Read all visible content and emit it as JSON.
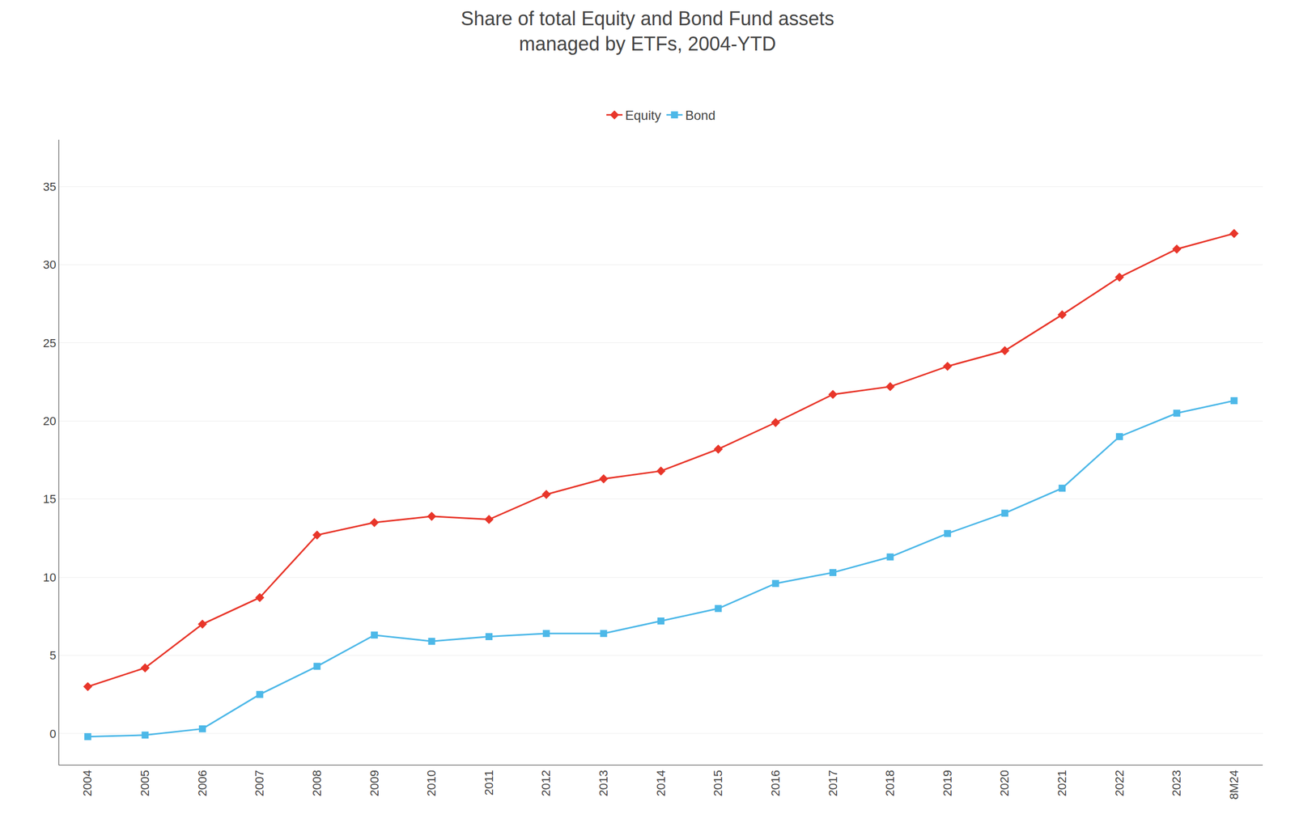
{
  "chart_data": {
    "type": "line",
    "title": "Share of total Equity and Bond Fund assets",
    "subtitle": "managed by ETFs, 2004-YTD",
    "categories": [
      "2004",
      "2005",
      "2006",
      "2007",
      "2008",
      "2009",
      "2010",
      "2011",
      "2012",
      "2013",
      "2014",
      "2015",
      "2016",
      "2017",
      "2018",
      "2019",
      "2020",
      "2021",
      "2022",
      "2023",
      "8M24"
    ],
    "series": [
      {
        "name": "Equity",
        "color": "#e8362a",
        "marker": "diamond",
        "values": [
          3.0,
          4.2,
          7.0,
          8.7,
          12.7,
          13.5,
          13.9,
          13.7,
          15.3,
          16.3,
          16.8,
          18.2,
          19.9,
          21.7,
          22.2,
          23.5,
          24.5,
          26.8,
          29.2,
          31.0,
          32.0
        ]
      },
      {
        "name": "Bond",
        "color": "#4db8e8",
        "marker": "square",
        "values": [
          -0.2,
          -0.1,
          0.3,
          2.5,
          4.3,
          6.3,
          5.9,
          6.2,
          6.4,
          6.4,
          7.2,
          8.0,
          9.6,
          10.3,
          11.3,
          12.8,
          14.1,
          15.7,
          19.0,
          20.5,
          21.3
        ]
      }
    ],
    "ylim": [
      -2,
      38
    ],
    "yticks": [
      0,
      5,
      10,
      15,
      20,
      25,
      30,
      35
    ],
    "grid": true,
    "legend": "top"
  }
}
